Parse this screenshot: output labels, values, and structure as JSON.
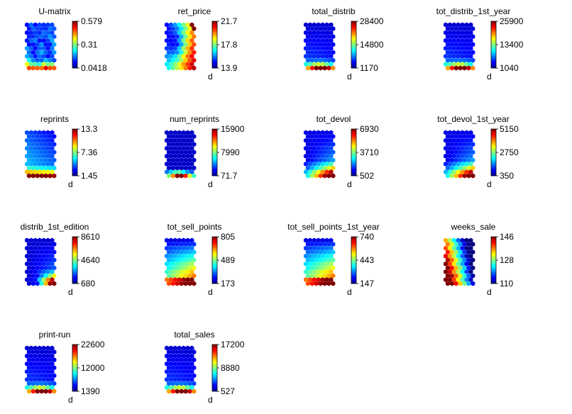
{
  "chart_data": [
    {
      "type": "heatmap",
      "title": "U-matrix",
      "colorbar_ticks": [
        "0.579",
        "0.31",
        "0.0418"
      ],
      "unit": "",
      "pattern": "umatrix"
    },
    {
      "type": "heatmap",
      "title": "ret_price",
      "colorbar_ticks": [
        "21.7",
        "17.8",
        "13.9"
      ],
      "unit": "d",
      "pattern": "ret_price"
    },
    {
      "type": "heatmap",
      "title": "total_distrib",
      "colorbar_ticks": [
        "28400",
        "14800",
        "1170"
      ],
      "unit": "d",
      "pattern": "bottom_hot"
    },
    {
      "type": "heatmap",
      "title": "tot_distrib_1st_year",
      "colorbar_ticks": [
        "25900",
        "13400",
        "1040"
      ],
      "unit": "d",
      "pattern": "bottom_hot"
    },
    {
      "type": "heatmap",
      "title": "reprints",
      "colorbar_ticks": [
        "13.3",
        "7.36",
        "1.45"
      ],
      "unit": "d",
      "pattern": "reprints"
    },
    {
      "type": "heatmap",
      "title": "num_reprints",
      "colorbar_ticks": [
        "15900",
        "7990",
        "71.7"
      ],
      "unit": "d",
      "pattern": "bottom_hot_sharp"
    },
    {
      "type": "heatmap",
      "title": "tot_devol",
      "colorbar_ticks": [
        "6930",
        "3710",
        "502"
      ],
      "unit": "d",
      "pattern": "devol"
    },
    {
      "type": "heatmap",
      "title": "tot_devol_1st_year",
      "colorbar_ticks": [
        "5150",
        "2750",
        "350"
      ],
      "unit": "d",
      "pattern": "devol"
    },
    {
      "type": "heatmap",
      "title": "distrib_1st_edition",
      "colorbar_ticks": [
        "8610",
        "4640",
        "680"
      ],
      "unit": "d",
      "pattern": "distrib_1st"
    },
    {
      "type": "heatmap",
      "title": "tot_sell_points",
      "colorbar_ticks": [
        "805",
        "489",
        "173"
      ],
      "unit": "d",
      "pattern": "sell_points"
    },
    {
      "type": "heatmap",
      "title": "tot_sell_points_1st_year",
      "colorbar_ticks": [
        "740",
        "443",
        "147"
      ],
      "unit": "d",
      "pattern": "sell_points"
    },
    {
      "type": "heatmap",
      "title": "weeks_sale",
      "colorbar_ticks": [
        "146",
        "128",
        "110"
      ],
      "unit": "d",
      "pattern": "weeks_sale"
    },
    {
      "type": "heatmap",
      "title": "print-run",
      "colorbar_ticks": [
        "22600",
        "12000",
        "1390"
      ],
      "unit": "d",
      "pattern": "bottom_hot"
    },
    {
      "type": "heatmap",
      "title": "total_sales",
      "colorbar_ticks": [
        "17200",
        "8880",
        "527"
      ],
      "unit": "d",
      "pattern": "bottom_hot"
    }
  ]
}
